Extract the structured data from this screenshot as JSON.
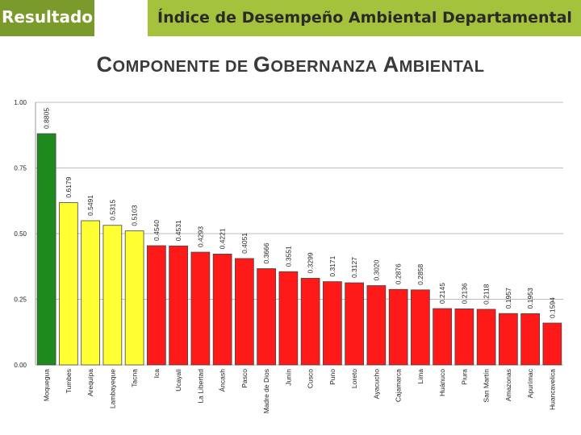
{
  "header": {
    "tab_label": "Resultado",
    "title": "Índice de Desempeño Ambiental Departamental"
  },
  "subtitle": {
    "w1_cap": "C",
    "w1_rest": "OMPONENTE",
    "w2": " DE ",
    "w3_cap": "G",
    "w3_rest": "OBERNANZA",
    "w4_cap": " A",
    "w4_rest": "MBIENTAL"
  },
  "colors": {
    "dark_green": "#1e8a1e",
    "yellow": "#ffff33",
    "red": "#ff1a1a",
    "header_green": "#a4c23c",
    "tab_green": "#7a9a2b"
  },
  "chart_data": {
    "type": "bar",
    "title": "Componente de Gobernanza Ambiental",
    "xlabel": "",
    "ylabel": "",
    "ylim": [
      0,
      1
    ],
    "y_ticks": [
      0,
      0.25,
      0.5,
      0.75,
      1
    ],
    "y_tick_labels": [
      "0.00",
      "0.25",
      "0.50",
      "0.75",
      "1.00"
    ],
    "categories": [
      "Moquegua",
      "Tumbes",
      "Arequipa",
      "Lambayeque",
      "Tacna",
      "Ica",
      "Ucayali",
      "La Libertad",
      "Áncash",
      "Pasco",
      "Madre de Dios",
      "Junín",
      "Cusco",
      "Puno",
      "Loreto",
      "Ayacucho",
      "Cajamarca",
      "Lima",
      "Huánuco",
      "Piura",
      "San Martín",
      "Amazonas",
      "Apurímac",
      "Huancavelica"
    ],
    "values": [
      0.8805,
      0.6179,
      0.5491,
      0.5315,
      0.5103,
      0.454,
      0.4531,
      0.4293,
      0.4221,
      0.4051,
      0.3666,
      0.3551,
      0.3299,
      0.3171,
      0.3127,
      0.302,
      0.2876,
      0.2858,
      0.2145,
      0.2136,
      0.2118,
      0.1957,
      0.1953,
      0.1594
    ],
    "value_labels": [
      "0.8805",
      "0.6179",
      "0.5491",
      "0.5315",
      "0.5103",
      "0.4540",
      "0.4531",
      "0.4293",
      "0.4221",
      "0.4051",
      "0.3666",
      "0.3551",
      "0.3299",
      "0.3171",
      "0.3127",
      "0.3020",
      "0.2876",
      "0.2858",
      "0.2145",
      "0.2136",
      "0.2118",
      "0.1957",
      "0.1953",
      "0.1594"
    ],
    "bar_color_groups": [
      "dark_green",
      "yellow",
      "yellow",
      "yellow",
      "yellow",
      "red",
      "red",
      "red",
      "red",
      "red",
      "red",
      "red",
      "red",
      "red",
      "red",
      "red",
      "red",
      "red",
      "red",
      "red",
      "red",
      "red",
      "red",
      "red"
    ]
  }
}
